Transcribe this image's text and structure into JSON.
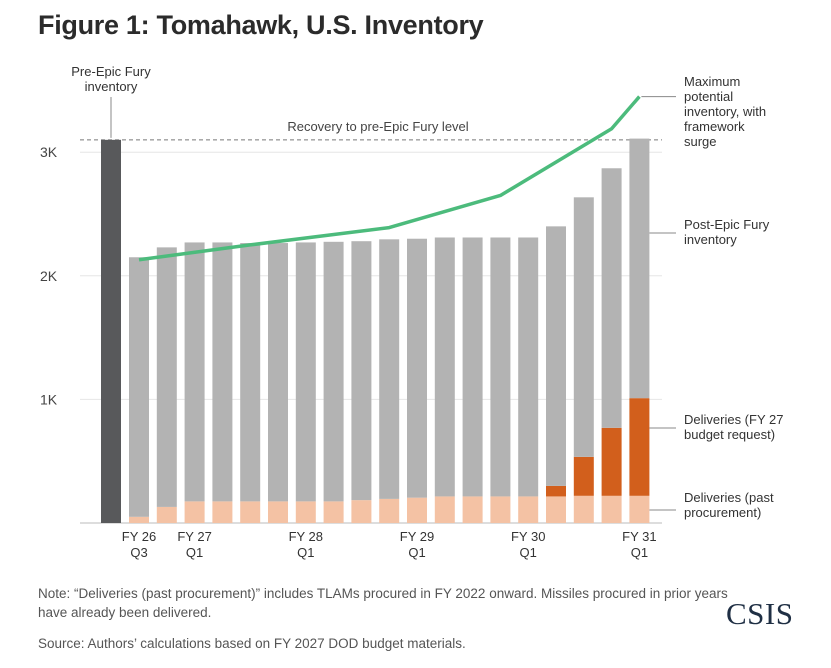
{
  "title": "Figure 1: Tomahawk, U.S. Inventory",
  "chart_data": {
    "type": "bar",
    "stacked": true,
    "ylim": [
      0,
      3200
    ],
    "y_ticks": [
      {
        "value": 1000,
        "label": "1K"
      },
      {
        "value": 2000,
        "label": "2K"
      },
      {
        "value": 3000,
        "label": "3K"
      }
    ],
    "grid": true,
    "pre_bar": {
      "value": 3100,
      "label_lines": [
        "Pre-Epic Fury",
        "inventory"
      ],
      "color": "#58595b"
    },
    "x_tick_labels": [
      {
        "index": 0,
        "lines": [
          "FY 26",
          "Q3"
        ]
      },
      {
        "index": 2,
        "lines": [
          "FY 27",
          "Q1"
        ]
      },
      {
        "index": 6,
        "lines": [
          "FY 28",
          "Q1"
        ]
      },
      {
        "index": 10,
        "lines": [
          "FY 29",
          "Q1"
        ]
      },
      {
        "index": 14,
        "lines": [
          "FY 30",
          "Q1"
        ]
      },
      {
        "index": 18,
        "lines": [
          "FY 31",
          "Q1"
        ]
      }
    ],
    "series": [
      {
        "name": "Deliveries (past procurement)",
        "color": "#f4c2a4",
        "values": [
          50,
          130,
          175,
          175,
          175,
          175,
          175,
          175,
          185,
          195,
          205,
          215,
          215,
          215,
          215,
          215,
          220,
          220,
          220
        ]
      },
      {
        "name": "Deliveries (FY 27 budget request)",
        "color": "#d25f1c",
        "values": [
          0,
          0,
          0,
          0,
          0,
          0,
          0,
          0,
          0,
          0,
          0,
          0,
          0,
          0,
          0,
          85,
          315,
          550,
          790
        ]
      },
      {
        "name": "Post-Epic Fury inventory",
        "color": "#b3b3b3",
        "values": [
          2100,
          2100,
          2095,
          2095,
          2090,
          2090,
          2095,
          2100,
          2095,
          2100,
          2095,
          2095,
          2095,
          2095,
          2095,
          2100,
          2100,
          2100,
          2100
        ]
      }
    ],
    "line": {
      "name": "Maximum potential inventory, with framework surge",
      "color": "#4cbb7c",
      "x_index": [
        0,
        4,
        9,
        13,
        17,
        18
      ],
      "values": [
        2130,
        2250,
        2390,
        2650,
        3190,
        3450
      ]
    },
    "reference_line": {
      "value": 3100,
      "label": "Recovery to pre-Epic Fury level"
    },
    "right_labels": [
      {
        "key": "line",
        "lines": [
          "Maximum",
          "potential",
          "inventory, with",
          "framework",
          "surge"
        ]
      },
      {
        "key": "post",
        "lines": [
          "Post-Epic Fury",
          "inventory"
        ]
      },
      {
        "key": "fy27",
        "lines": [
          "Deliveries (FY 27",
          "budget request)"
        ]
      },
      {
        "key": "past",
        "lines": [
          "Deliveries (past",
          "procurement)"
        ]
      }
    ]
  },
  "notes": {
    "note": "Note: “Deliveries (past procurement)” includes TLAMs procured in FY 2022 onward. Missiles procured in prior years have already been delivered.",
    "source": "Source: Authors’ calculations based on FY 2027 DOD budget materials."
  },
  "logo": "CSIS"
}
